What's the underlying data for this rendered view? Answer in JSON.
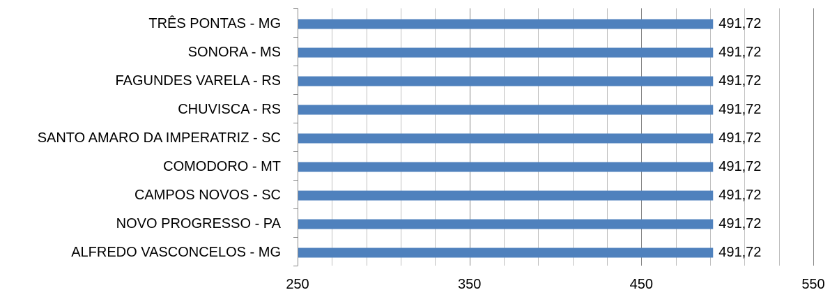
{
  "chart_data": {
    "type": "bar",
    "orientation": "horizontal",
    "categories": [
      "TRÊS PONTAS - MG",
      "SONORA - MS",
      "FAGUNDES VARELA - RS",
      "CHUVISCA - RS",
      "SANTO AMARO DA IMPERATRIZ - SC",
      "COMODORO - MT",
      "CAMPOS NOVOS - SC",
      "NOVO PROGRESSO - PA",
      "ALFREDO VASCONCELOS - MG"
    ],
    "values": [
      491.72,
      491.72,
      491.72,
      491.72,
      491.72,
      491.72,
      491.72,
      491.72,
      491.72
    ],
    "data_labels": [
      "491,72",
      "491,72",
      "491,72",
      "491,72",
      "491,72",
      "491,72",
      "491,72",
      "491,72",
      "491,72"
    ],
    "xlim": [
      250,
      550
    ],
    "x_ticks": [
      250,
      350,
      450,
      550
    ],
    "x_tick_labels": [
      "250",
      "350",
      "450",
      "550"
    ],
    "minor_step": 20,
    "grid": true,
    "bar_color": "#4f81bd",
    "title": "",
    "xlabel": "",
    "ylabel": ""
  }
}
